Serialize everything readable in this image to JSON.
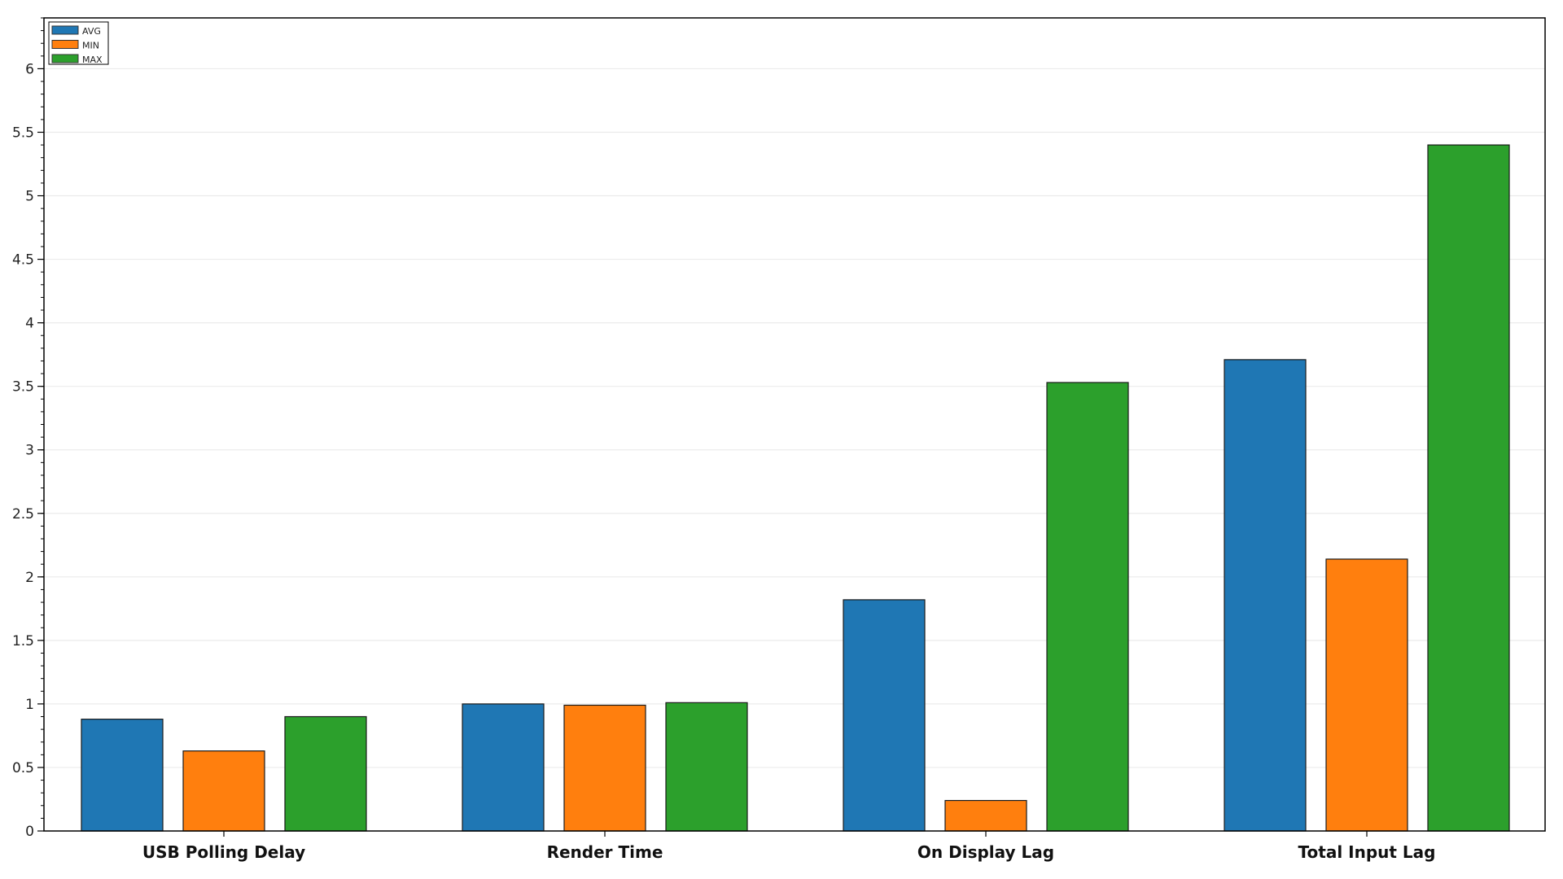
{
  "chart_data": {
    "type": "bar",
    "title": "",
    "xlabel": "",
    "ylabel": "",
    "categories": [
      "USB Polling Delay",
      "Render Time",
      "On Display Lag",
      "Total Input Lag"
    ],
    "series": [
      {
        "name": "AVG",
        "color": "#1f77b4",
        "values": [
          0.88,
          1.0,
          1.82,
          3.71
        ]
      },
      {
        "name": "MIN",
        "color": "#ff7f0e",
        "values": [
          0.63,
          0.99,
          0.24,
          2.14
        ]
      },
      {
        "name": "MAX",
        "color": "#2ca02c",
        "values": [
          0.9,
          1.01,
          3.53,
          5.4
        ]
      }
    ],
    "ylim": [
      0,
      6.4
    ],
    "yticks": [
      "0",
      "0.5",
      "1",
      "1.5",
      "2",
      "2.5",
      "3",
      "3.5",
      "4",
      "4.5",
      "5",
      "5.5",
      "6"
    ],
    "grid": true,
    "legend_position": "top-left"
  }
}
